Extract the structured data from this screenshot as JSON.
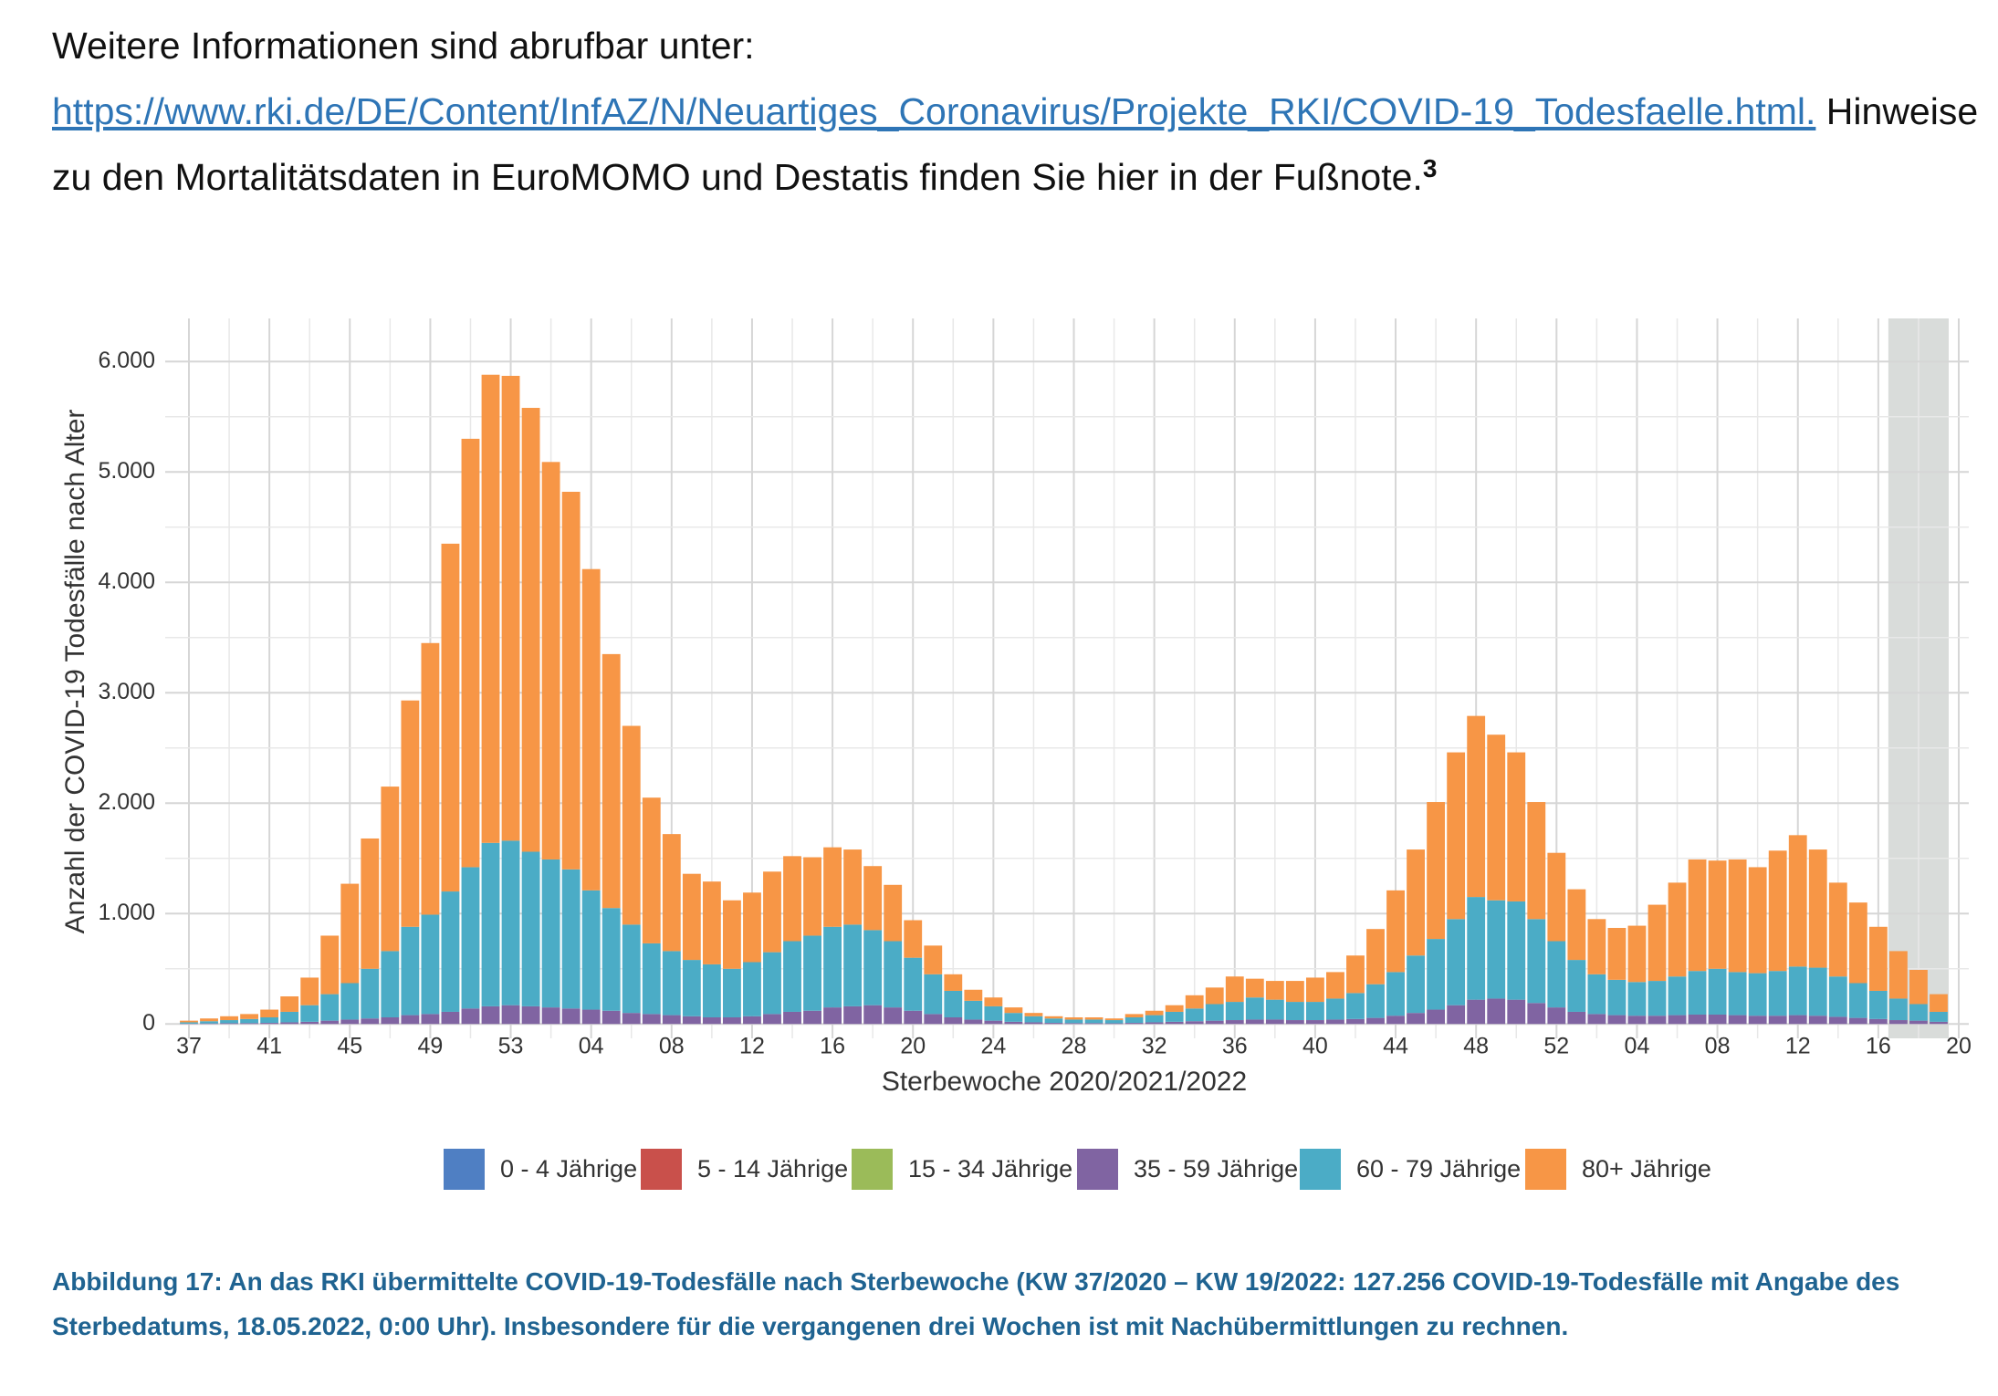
{
  "intro": {
    "text": "Weitere Informationen sind abrufbar unter:",
    "link": "https://www.rki.de/DE/Content/InfAZ/N/Neuartiges_Coronavirus/Projekte_RKI/COVID-19_Todesfaelle.html.",
    "note": "Hinweise zu den Mortalitätsdaten in EuroMOMO und Destatis finden Sie hier in der Fußnote.",
    "footnote_ref": "3"
  },
  "chart_data": {
    "type": "bar",
    "stacked": true,
    "x_label": "Sterbewoche 2020/2021/2022",
    "y_label": "Anzahl der COVID-19 Todesfälle nach Alter",
    "categories": [
      "37",
      null,
      null,
      null,
      "41",
      null,
      null,
      null,
      "45",
      null,
      null,
      null,
      "49",
      null,
      null,
      null,
      "53",
      null,
      null,
      null,
      "04",
      null,
      null,
      null,
      "08",
      null,
      null,
      null,
      "12",
      null,
      null,
      null,
      "16",
      null,
      null,
      null,
      "20",
      null,
      null,
      null,
      "24",
      null,
      null,
      null,
      "28",
      null,
      null,
      null,
      "32",
      null,
      null,
      null,
      "36",
      null,
      null,
      null,
      "40",
      null,
      null,
      null,
      "44",
      null,
      null,
      null,
      "48",
      null,
      null,
      null,
      "52",
      null,
      null,
      null,
      "04",
      null,
      null,
      null,
      "08",
      null,
      null,
      null,
      "12",
      null,
      null,
      null,
      "16",
      null,
      null,
      null,
      "20"
    ],
    "ylim": [
      -130,
      6390
    ],
    "yticks": [
      0,
      {
        "value": 1000,
        "label": "1.000"
      },
      {
        "value": 2000,
        "label": "2.000"
      },
      {
        "value": 3000,
        "label": "3.000"
      },
      {
        "value": 4000,
        "label": "4.000"
      },
      {
        "value": 5000,
        "label": "5.000"
      },
      {
        "value": 6000,
        "label": "6.000"
      }
    ],
    "grid": true,
    "legend": "bottom",
    "series": [
      {
        "name": "0 - 4 Jährige",
        "color": "#4f7fc3",
        "values": [
          0,
          0,
          0,
          0,
          0,
          0,
          0,
          0,
          0,
          0,
          0,
          0,
          0,
          0,
          0,
          0,
          0,
          0,
          0,
          0,
          0,
          0,
          0,
          0,
          0,
          0,
          0,
          0,
          0,
          0,
          0,
          0,
          0,
          0,
          0,
          0,
          0,
          0,
          0,
          0,
          0,
          0,
          0,
          0,
          0,
          0,
          0,
          0,
          0,
          0,
          0,
          0,
          0,
          0,
          0,
          0,
          0,
          0,
          0,
          0,
          0,
          0,
          0,
          0,
          0,
          0,
          0,
          0,
          0,
          0,
          0,
          0,
          0,
          0,
          0,
          0,
          0,
          0,
          0,
          0,
          0,
          0,
          0,
          0,
          0,
          0,
          0,
          0,
          null
        ]
      },
      {
        "name": "5 - 14 Jährige",
        "color": "#c9504b",
        "values": [
          0,
          0,
          0,
          0,
          0,
          0,
          0,
          0,
          0,
          0,
          0,
          0,
          0,
          0,
          0,
          0,
          0,
          0,
          0,
          0,
          0,
          0,
          0,
          0,
          0,
          0,
          0,
          0,
          0,
          0,
          0,
          0,
          0,
          0,
          0,
          0,
          0,
          0,
          0,
          0,
          0,
          0,
          0,
          0,
          0,
          0,
          0,
          0,
          0,
          0,
          0,
          0,
          0,
          0,
          0,
          0,
          0,
          0,
          0,
          0,
          0,
          0,
          0,
          0,
          0,
          0,
          0,
          0,
          0,
          0,
          0,
          0,
          0,
          0,
          0,
          0,
          0,
          0,
          0,
          0,
          0,
          0,
          0,
          0,
          0,
          0,
          0,
          0,
          null
        ]
      },
      {
        "name": "15 - 34 Jährige",
        "color": "#9bbb59",
        "values": [
          0,
          0,
          0,
          0,
          0,
          0,
          0,
          0,
          0,
          0,
          0,
          0,
          0,
          0,
          0,
          0,
          0,
          0,
          0,
          0,
          0,
          0,
          0,
          0,
          0,
          0,
          0,
          0,
          0,
          0,
          0,
          0,
          0,
          0,
          0,
          0,
          0,
          0,
          0,
          0,
          0,
          0,
          0,
          0,
          0,
          0,
          0,
          0,
          0,
          0,
          0,
          0,
          0,
          0,
          0,
          0,
          0,
          0,
          0,
          0,
          0,
          0,
          0,
          0,
          0,
          0,
          0,
          0,
          0,
          0,
          0,
          0,
          0,
          0,
          0,
          0,
          0,
          0,
          0,
          0,
          0,
          0,
          0,
          0,
          0,
          0,
          0,
          0,
          null
        ]
      },
      {
        "name": "35 - 59 Jährige",
        "color": "#8064a2",
        "values": [
          3,
          5,
          7,
          8,
          10,
          15,
          20,
          30,
          40,
          50,
          60,
          80,
          90,
          110,
          140,
          160,
          170,
          160,
          150,
          140,
          130,
          120,
          100,
          90,
          80,
          70,
          60,
          60,
          70,
          90,
          110,
          120,
          150,
          160,
          170,
          150,
          120,
          90,
          60,
          40,
          30,
          20,
          15,
          10,
          8,
          8,
          6,
          10,
          15,
          20,
          25,
          30,
          35,
          40,
          40,
          35,
          35,
          40,
          45,
          55,
          75,
          100,
          130,
          170,
          220,
          230,
          220,
          190,
          150,
          110,
          90,
          80,
          75,
          75,
          80,
          85,
          85,
          80,
          75,
          75,
          80,
          75,
          65,
          55,
          45,
          35,
          30,
          20,
          null
        ]
      },
      {
        "name": "60 - 79 Jährige",
        "color": "#4bacc6",
        "values": [
          12,
          20,
          28,
          37,
          50,
          95,
          150,
          240,
          330,
          450,
          600,
          800,
          900,
          1090,
          1280,
          1480,
          1490,
          1400,
          1340,
          1260,
          1080,
          930,
          800,
          640,
          580,
          510,
          480,
          440,
          490,
          560,
          640,
          680,
          730,
          740,
          680,
          600,
          480,
          360,
          240,
          170,
          130,
          80,
          55,
          40,
          32,
          32,
          29,
          50,
          65,
          90,
          115,
          150,
          165,
          200,
          180,
          165,
          165,
          190,
          235,
          305,
          395,
          520,
          640,
          780,
          930,
          890,
          890,
          760,
          600,
          470,
          360,
          320,
          305,
          315,
          350,
          395,
          415,
          390,
          385,
          405,
          440,
          435,
          365,
          315,
          255,
          195,
          150,
          90,
          null
        ]
      },
      {
        "name": "80+ Jährige",
        "color": "#f79646",
        "values": [
          15,
          25,
          35,
          45,
          70,
          140,
          250,
          530,
          900,
          1180,
          1490,
          2050,
          2460,
          3150,
          3880,
          4240,
          4210,
          4020,
          3600,
          3420,
          2910,
          2300,
          1800,
          1320,
          1060,
          780,
          750,
          620,
          630,
          730,
          770,
          710,
          720,
          680,
          580,
          510,
          340,
          260,
          150,
          100,
          80,
          50,
          30,
          20,
          20,
          20,
          15,
          30,
          40,
          60,
          120,
          150,
          230,
          170,
          170,
          190,
          220,
          240,
          340,
          500,
          740,
          960,
          1240,
          1510,
          1640,
          1500,
          1350,
          1060,
          800,
          640,
          500,
          470,
          510,
          690,
          850,
          1010,
          980,
          1020,
          960,
          1090,
          1190,
          1070,
          850,
          730,
          580,
          430,
          310,
          160,
          null
        ]
      }
    ]
  },
  "caption": "Abbildung 17: An das RKI übermittelte COVID-19-Todesfälle nach Sterbewoche (KW 37/2020 – KW 19/2022: 127.256 COVID-19-Todesfälle mit Angabe des Sterbedatums, 18.05.2022, 0:00 Uhr). Insbesondere für die vergangenen drei Wochen ist mit Nachübermittlungen zu rechnen."
}
